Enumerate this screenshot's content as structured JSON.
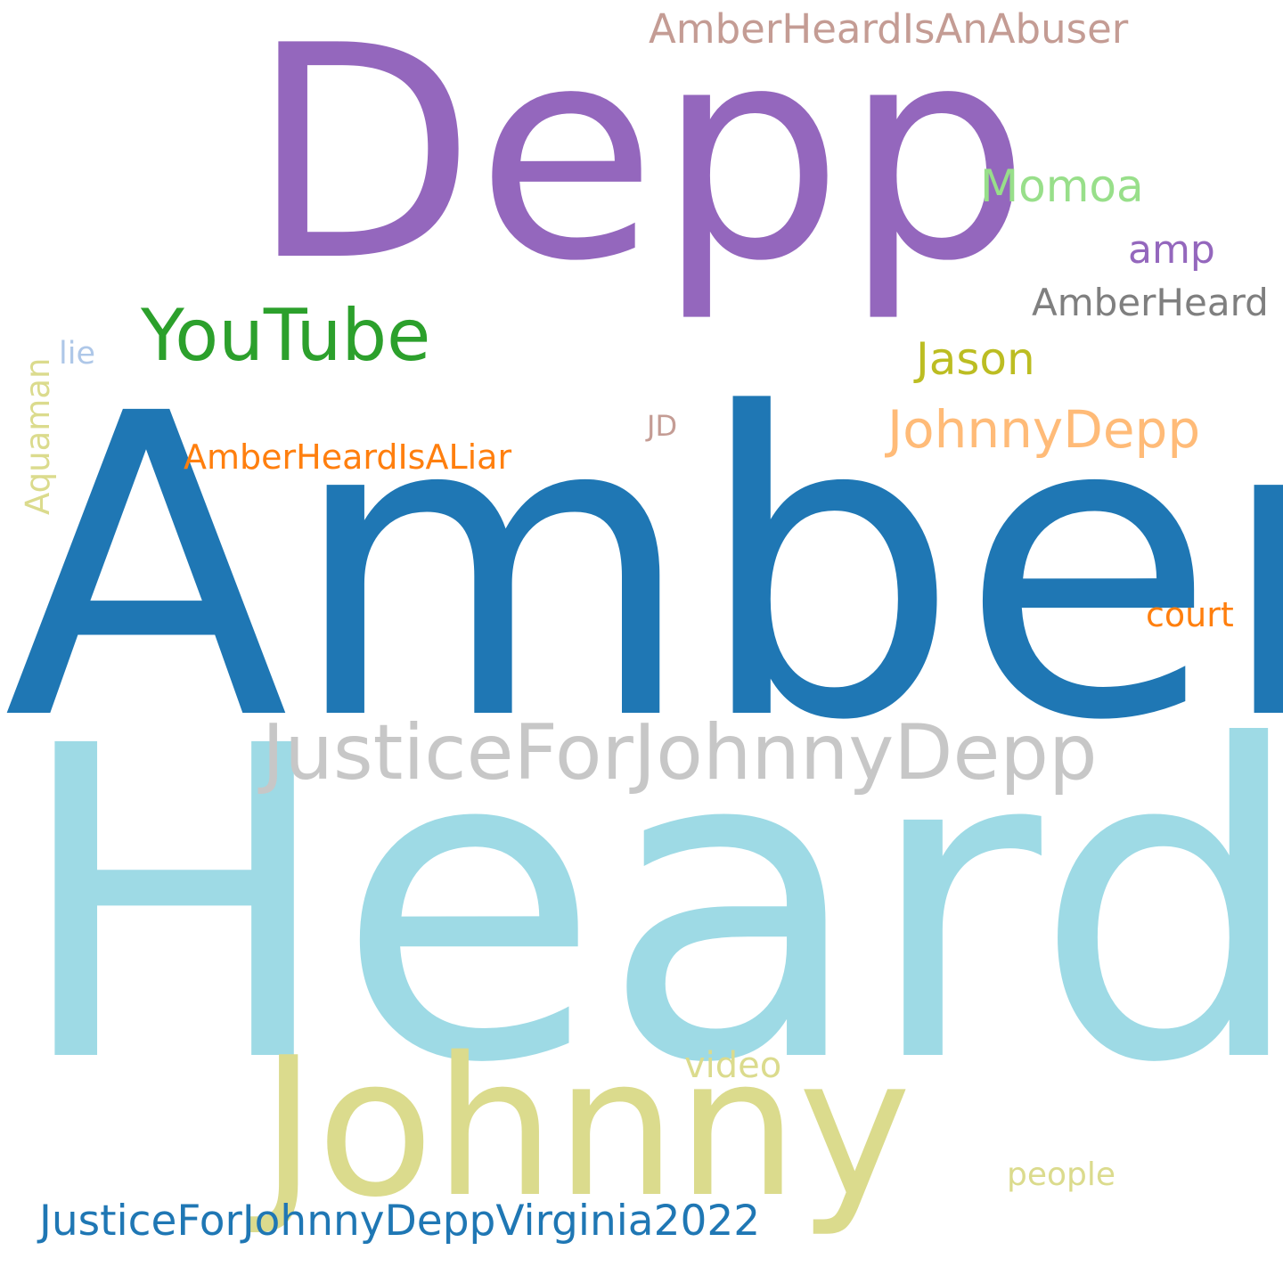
{
  "words": [
    {
      "text": "Heard",
      "color": "#9edae5"
    },
    {
      "text": "Amber",
      "color": "#1f77b4"
    },
    {
      "text": "Depp",
      "color": "#9467bd"
    },
    {
      "text": "Johnny",
      "color": "#dbdb8d"
    },
    {
      "text": "JusticeForJohnnyDepp",
      "color": "#c7c7c7"
    },
    {
      "text": "YouTube",
      "color": "#2ca02c"
    },
    {
      "text": "JusticeForJohnnyDeppVirginia2022",
      "color": "#1f77b4"
    },
    {
      "text": "JohnnyDepp",
      "color": "#ffbb78"
    },
    {
      "text": "AmberHeardIsAnAbuser",
      "color": "#c49c94"
    },
    {
      "text": "AmberHeardIsALiar",
      "color": "#ff7f0e"
    },
    {
      "text": "AmberHeard",
      "color": "#7f7f7f"
    },
    {
      "text": "Momoa",
      "color": "#98df8a"
    },
    {
      "text": "Jason",
      "color": "#bcbd22"
    },
    {
      "text": "amp",
      "color": "#9467bd"
    },
    {
      "text": "court",
      "color": "#ff7f0e"
    },
    {
      "text": "video",
      "color": "#dbdb8d"
    },
    {
      "text": "people",
      "color": "#dbdb8d"
    },
    {
      "text": "Aquaman",
      "color": "#dbdb8d"
    },
    {
      "text": "lie",
      "color": "#aec7e8"
    },
    {
      "text": "JD",
      "color": "#c49c94"
    }
  ]
}
